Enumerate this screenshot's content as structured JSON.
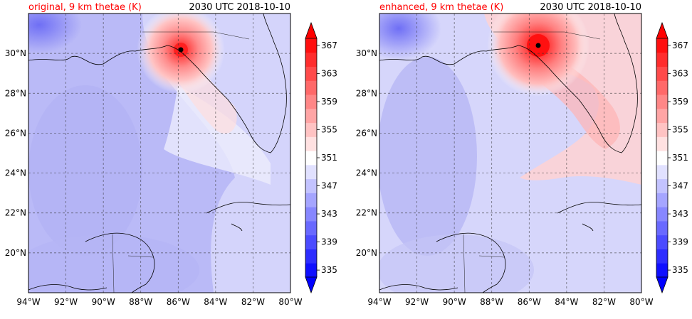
{
  "figure": {
    "date_label": "2030 UTC 2018-10-10"
  },
  "panels": [
    {
      "title": "original, 9 km thetae (K)",
      "date": "2030 UTC 2018-10-10",
      "storm_center": {
        "lon": -85.8,
        "lat": 30.35
      }
    },
    {
      "title": "enhanced, 9 km thetae (K)",
      "date": "2030 UTC 2018-10-10",
      "storm_center": {
        "lon": -85.45,
        "lat": 30.55
      }
    }
  ],
  "chart_data": [
    {
      "type": "heatmap",
      "title": "original, 9 km thetae (K)",
      "subtitle": "2030 UTC 2018-10-10",
      "xlim": [
        -94,
        -80
      ],
      "ylim": [
        18,
        32
      ],
      "x_ticks": [
        "94°W",
        "92°W",
        "90°W",
        "88°W",
        "86°W",
        "84°W",
        "82°W",
        "80°W"
      ],
      "y_ticks": [
        "20°N",
        "22°N",
        "24°N",
        "26°N",
        "28°N",
        "30°N"
      ],
      "colorbar": {
        "levels": [
          335,
          337,
          339,
          341,
          343,
          345,
          347,
          349,
          351,
          353,
          355,
          357,
          359,
          361,
          363,
          365,
          367,
          369
        ],
        "tick_labels": [
          "335",
          "339",
          "343",
          "347",
          "351",
          "355",
          "359",
          "363",
          "367"
        ],
        "extend": "both",
        "cmap": "bwr"
      },
      "marker": {
        "lon": -85.8,
        "lat": 30.35
      },
      "grid": true
    },
    {
      "type": "heatmap",
      "title": "enhanced, 9 km thetae (K)",
      "subtitle": "2030 UTC 2018-10-10",
      "xlim": [
        -94,
        -80
      ],
      "ylim": [
        18,
        32
      ],
      "x_ticks": [
        "94°W",
        "92°W",
        "90°W",
        "88°W",
        "86°W",
        "84°W",
        "82°W",
        "80°W"
      ],
      "y_ticks": [
        "20°N",
        "22°N",
        "24°N",
        "26°N",
        "28°N",
        "30°N"
      ],
      "colorbar": {
        "levels": [
          335,
          337,
          339,
          341,
          343,
          345,
          347,
          349,
          351,
          353,
          355,
          357,
          359,
          361,
          363,
          365,
          367,
          369
        ],
        "tick_labels": [
          "335",
          "339",
          "343",
          "347",
          "351",
          "355",
          "359",
          "363",
          "367"
        ],
        "extend": "both",
        "cmap": "bwr"
      },
      "marker": {
        "lon": -85.45,
        "lat": 30.55
      },
      "grid": true
    }
  ]
}
